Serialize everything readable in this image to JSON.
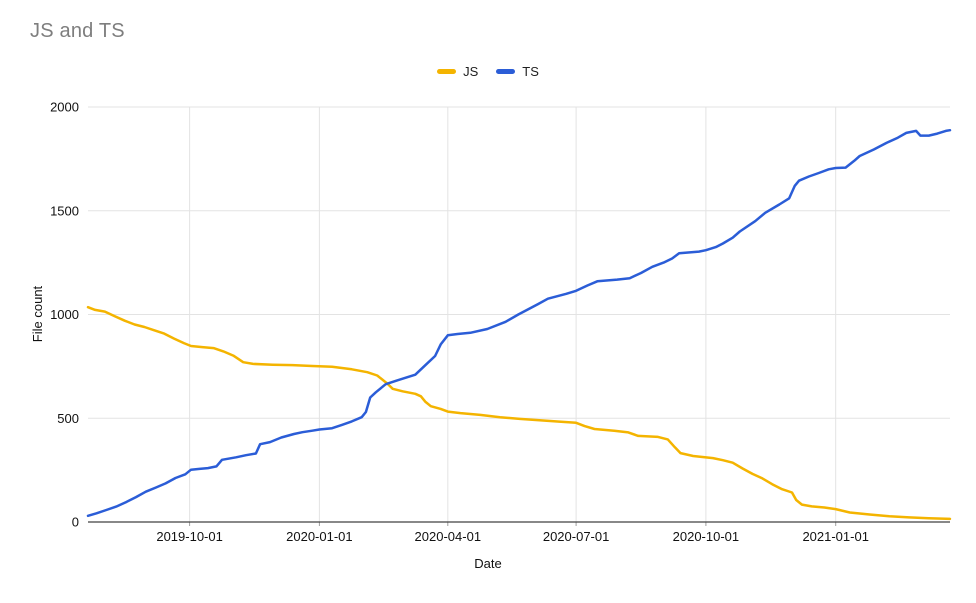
{
  "chart_data": {
    "type": "line",
    "title": "JS and TS",
    "xlabel": "Date",
    "ylabel": "File count",
    "x_range": [
      "2019-07-21",
      "2021-03-23"
    ],
    "ylim": [
      0,
      2000
    ],
    "yticks": [
      0,
      500,
      1000,
      1500,
      2000
    ],
    "xticks": [
      "2019-10-01",
      "2020-01-01",
      "2020-04-01",
      "2020-07-01",
      "2020-10-01",
      "2021-01-01"
    ],
    "grid": true,
    "legend_position": "top-center",
    "series": [
      {
        "name": "JS",
        "color": "#F4B400",
        "points": [
          [
            "2019-07-21",
            1035
          ],
          [
            "2019-07-26",
            1022
          ],
          [
            "2019-08-02",
            1014
          ],
          [
            "2019-08-09",
            992
          ],
          [
            "2019-08-16",
            970
          ],
          [
            "2019-08-23",
            952
          ],
          [
            "2019-08-30",
            940
          ],
          [
            "2019-09-06",
            924
          ],
          [
            "2019-09-13",
            908
          ],
          [
            "2019-09-20",
            884
          ],
          [
            "2019-09-27",
            862
          ],
          [
            "2019-10-02",
            848
          ],
          [
            "2019-10-10",
            843
          ],
          [
            "2019-10-18",
            838
          ],
          [
            "2019-10-25",
            822
          ],
          [
            "2019-11-01",
            802
          ],
          [
            "2019-11-08",
            770
          ],
          [
            "2019-11-15",
            762
          ],
          [
            "2019-11-29",
            758
          ],
          [
            "2019-12-13",
            756
          ],
          [
            "2019-12-27",
            752
          ],
          [
            "2020-01-10",
            748
          ],
          [
            "2020-01-24",
            736
          ],
          [
            "2020-02-04",
            722
          ],
          [
            "2020-02-11",
            706
          ],
          [
            "2020-02-18",
            668
          ],
          [
            "2020-02-22",
            642
          ],
          [
            "2020-02-29",
            630
          ],
          [
            "2020-03-09",
            618
          ],
          [
            "2020-03-13",
            606
          ],
          [
            "2020-03-16",
            580
          ],
          [
            "2020-03-20",
            558
          ],
          [
            "2020-03-27",
            545
          ],
          [
            "2020-04-01",
            532
          ],
          [
            "2020-04-10",
            525
          ],
          [
            "2020-04-24",
            516
          ],
          [
            "2020-05-08",
            505
          ],
          [
            "2020-05-22",
            497
          ],
          [
            "2020-06-05",
            490
          ],
          [
            "2020-06-19",
            484
          ],
          [
            "2020-07-01",
            478
          ],
          [
            "2020-07-07",
            462
          ],
          [
            "2020-07-14",
            448
          ],
          [
            "2020-07-28",
            440
          ],
          [
            "2020-08-07",
            432
          ],
          [
            "2020-08-14",
            415
          ],
          [
            "2020-08-28",
            410
          ],
          [
            "2020-09-04",
            398
          ],
          [
            "2020-09-09",
            360
          ],
          [
            "2020-09-13",
            332
          ],
          [
            "2020-09-22",
            318
          ],
          [
            "2020-10-06",
            308
          ],
          [
            "2020-10-13",
            298
          ],
          [
            "2020-10-20",
            286
          ],
          [
            "2020-10-27",
            258
          ],
          [
            "2020-11-03",
            232
          ],
          [
            "2020-11-10",
            210
          ],
          [
            "2020-11-17",
            182
          ],
          [
            "2020-11-24",
            158
          ],
          [
            "2020-12-01",
            142
          ],
          [
            "2020-12-04",
            106
          ],
          [
            "2020-12-08",
            84
          ],
          [
            "2020-12-15",
            75
          ],
          [
            "2020-12-24",
            70
          ],
          [
            "2021-01-01",
            62
          ],
          [
            "2021-01-11",
            46
          ],
          [
            "2021-01-25",
            36
          ],
          [
            "2021-02-08",
            28
          ],
          [
            "2021-02-22",
            22
          ],
          [
            "2021-03-08",
            18
          ],
          [
            "2021-03-23",
            15
          ]
        ]
      },
      {
        "name": "TS",
        "color": "#2B5DD7",
        "points": [
          [
            "2019-07-21",
            30
          ],
          [
            "2019-07-27",
            42
          ],
          [
            "2019-08-03",
            58
          ],
          [
            "2019-08-10",
            74
          ],
          [
            "2019-08-17",
            96
          ],
          [
            "2019-08-24",
            120
          ],
          [
            "2019-08-31",
            146
          ],
          [
            "2019-09-07",
            166
          ],
          [
            "2019-09-14",
            186
          ],
          [
            "2019-09-21",
            212
          ],
          [
            "2019-09-28",
            230
          ],
          [
            "2019-10-02",
            252
          ],
          [
            "2019-10-08",
            256
          ],
          [
            "2019-10-14",
            260
          ],
          [
            "2019-10-20",
            268
          ],
          [
            "2019-10-24",
            300
          ],
          [
            "2019-11-03",
            312
          ],
          [
            "2019-11-10",
            322
          ],
          [
            "2019-11-17",
            330
          ],
          [
            "2019-11-20",
            375
          ],
          [
            "2019-11-27",
            385
          ],
          [
            "2019-12-05",
            407
          ],
          [
            "2019-12-14",
            424
          ],
          [
            "2019-12-20",
            433
          ],
          [
            "2019-12-27",
            440
          ],
          [
            "2020-01-01",
            446
          ],
          [
            "2020-01-10",
            452
          ],
          [
            "2020-01-17",
            468
          ],
          [
            "2020-01-24",
            485
          ],
          [
            "2020-01-31",
            505
          ],
          [
            "2020-02-03",
            530
          ],
          [
            "2020-02-06",
            600
          ],
          [
            "2020-02-10",
            625
          ],
          [
            "2020-02-17",
            664
          ],
          [
            "2020-02-24",
            680
          ],
          [
            "2020-03-02",
            695
          ],
          [
            "2020-03-09",
            710
          ],
          [
            "2020-03-16",
            755
          ],
          [
            "2020-03-23",
            800
          ],
          [
            "2020-03-27",
            856
          ],
          [
            "2020-04-01",
            900
          ],
          [
            "2020-04-08",
            906
          ],
          [
            "2020-04-17",
            912
          ],
          [
            "2020-04-29",
            930
          ],
          [
            "2020-05-12",
            965
          ],
          [
            "2020-05-21",
            1000
          ],
          [
            "2020-06-04",
            1050
          ],
          [
            "2020-06-11",
            1076
          ],
          [
            "2020-06-24",
            1100
          ],
          [
            "2020-07-01",
            1114
          ],
          [
            "2020-07-09",
            1140
          ],
          [
            "2020-07-16",
            1160
          ],
          [
            "2020-07-30",
            1168
          ],
          [
            "2020-08-08",
            1175
          ],
          [
            "2020-08-16",
            1200
          ],
          [
            "2020-08-24",
            1230
          ],
          [
            "2020-09-01",
            1250
          ],
          [
            "2020-09-07",
            1270
          ],
          [
            "2020-09-12",
            1295
          ],
          [
            "2020-09-26",
            1303
          ],
          [
            "2020-10-01",
            1310
          ],
          [
            "2020-10-08",
            1325
          ],
          [
            "2020-10-13",
            1342
          ],
          [
            "2020-10-20",
            1370
          ],
          [
            "2020-10-25",
            1400
          ],
          [
            "2020-11-05",
            1450
          ],
          [
            "2020-11-12",
            1490
          ],
          [
            "2020-11-22",
            1530
          ],
          [
            "2020-11-29",
            1560
          ],
          [
            "2020-12-03",
            1620
          ],
          [
            "2020-12-06",
            1645
          ],
          [
            "2020-12-13",
            1665
          ],
          [
            "2020-12-20",
            1682
          ],
          [
            "2020-12-27",
            1700
          ],
          [
            "2021-01-01",
            1706
          ],
          [
            "2021-01-08",
            1708
          ],
          [
            "2021-01-14",
            1740
          ],
          [
            "2021-01-18",
            1764
          ],
          [
            "2021-01-28",
            1795
          ],
          [
            "2021-02-06",
            1827
          ],
          [
            "2021-02-14",
            1852
          ],
          [
            "2021-02-20",
            1875
          ],
          [
            "2021-02-27",
            1885
          ],
          [
            "2021-03-02",
            1862
          ],
          [
            "2021-03-08",
            1862
          ],
          [
            "2021-03-14",
            1872
          ],
          [
            "2021-03-20",
            1885
          ],
          [
            "2021-03-23",
            1888
          ]
        ]
      }
    ]
  },
  "colors": {
    "background": "#ffffff",
    "title_text": "#7e7e7e",
    "axis_text": "#111111",
    "gridline": "#e3e3e3",
    "baseline": "#424242",
    "tick": "#9e9e9e"
  }
}
